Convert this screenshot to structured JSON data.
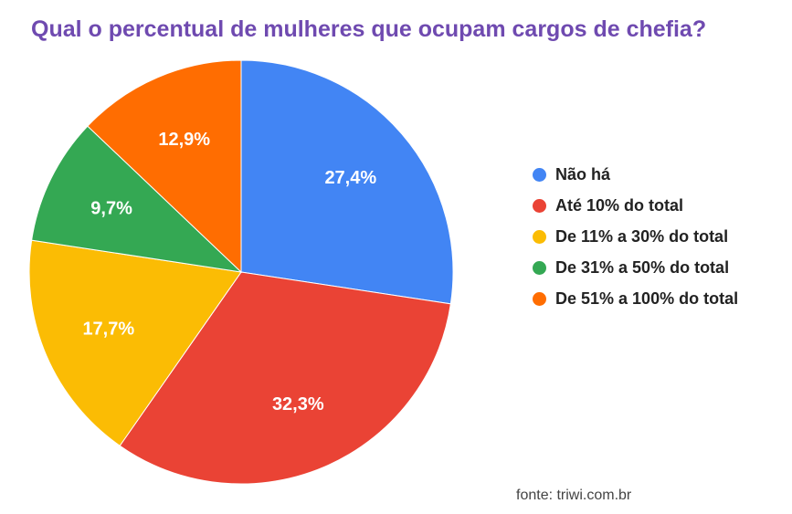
{
  "chart_data": {
    "type": "pie",
    "title": "Qual o percentual de mulheres que ocupam cargos de chefia?",
    "start_angle": "12 o'clock",
    "direction": "clockwise",
    "legend_position": "right",
    "slices": [
      {
        "label": "Não há",
        "value": 27.4,
        "value_label": "27,4%",
        "color": "#4285f4"
      },
      {
        "label": "Até 10% do total",
        "value": 32.3,
        "value_label": "32,3%",
        "color": "#ea4335"
      },
      {
        "label": "De 11% a 30% do total",
        "value": 17.7,
        "value_label": "17,7%",
        "color": "#fbbc04"
      },
      {
        "label": "De 31% a 50% do total",
        "value": 9.7,
        "value_label": "9,7%",
        "color": "#34a853"
      },
      {
        "label": "De 51% a 100% do total",
        "value": 12.9,
        "value_label": "12,9%",
        "color": "#ff6d01"
      }
    ]
  },
  "source": "fonte: triwi.com.br"
}
